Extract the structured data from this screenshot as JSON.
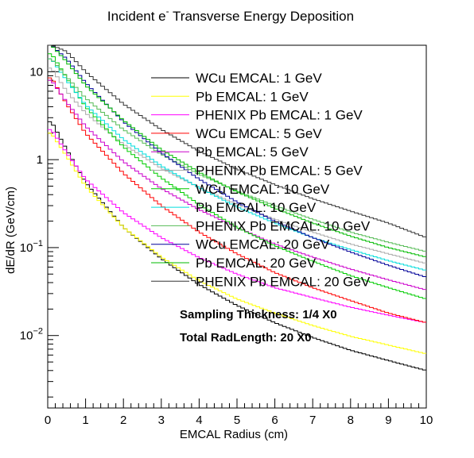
{
  "chart_data": {
    "type": "line",
    "title_main": "Incident e",
    "title_sup": "-",
    "title_rest": " Transverse Energy Deposition",
    "xlabel": "EMCAL Radius (cm)",
    "ylabel": "dE/dR (GeV/cm)",
    "xlim": [
      0,
      10
    ],
    "ylim": [
      0.0015,
      20
    ],
    "yscale": "log",
    "grid": false,
    "legend_position": "top-right",
    "x_ticks": [
      "0",
      "1",
      "2",
      "3",
      "4",
      "5",
      "6",
      "7",
      "8",
      "9",
      "10"
    ],
    "y_ticks": [
      {
        "value": 0.01,
        "base": "10",
        "exp": "−2"
      },
      {
        "value": 0.1,
        "base": "10",
        "exp": "−1"
      },
      {
        "value": 1,
        "base": "1",
        "exp": ""
      },
      {
        "value": 10,
        "base": "10",
        "exp": ""
      }
    ],
    "annotations": [
      "Sampling Thickness: 1/4 X0",
      "Total RadLength: 20 X0"
    ],
    "series": [
      {
        "name": "WCu EMCAL: 1 GeV",
        "color": "#000000",
        "x": [
          0.1,
          0.5,
          1,
          2,
          3,
          4,
          5,
          6,
          7,
          8,
          9,
          10
        ],
        "y": [
          2.7,
          1.3,
          0.55,
          0.17,
          0.075,
          0.038,
          0.022,
          0.014,
          0.0095,
          0.0068,
          0.0052,
          0.004
        ]
      },
      {
        "name": "Pb EMCAL: 1 GeV",
        "color": "#ffff00",
        "x": [
          0.1,
          0.5,
          1,
          2,
          3,
          4,
          5,
          6,
          7,
          8,
          9,
          10
        ],
        "y": [
          2.0,
          1.1,
          0.5,
          0.17,
          0.078,
          0.042,
          0.026,
          0.018,
          0.013,
          0.0098,
          0.0078,
          0.0062
        ]
      },
      {
        "name": "PHENIX Pb EMCAL: 1 GeV",
        "color": "#ff00ff",
        "x": [
          0.1,
          0.5,
          1,
          2,
          3,
          4,
          5,
          6,
          7,
          8,
          9,
          10
        ],
        "y": [
          2.2,
          1.2,
          0.6,
          0.25,
          0.13,
          0.077,
          0.05,
          0.035,
          0.027,
          0.021,
          0.017,
          0.014
        ]
      },
      {
        "name": "WCu EMCAL: 5 GeV",
        "color": "#ff0000",
        "x": [
          0.1,
          0.5,
          1,
          2,
          3,
          4,
          5,
          6,
          7,
          8,
          9,
          10
        ],
        "y": [
          8.5,
          4.3,
          2.0,
          0.7,
          0.3,
          0.15,
          0.085,
          0.052,
          0.035,
          0.025,
          0.018,
          0.014
        ]
      },
      {
        "name": "Pb EMCAL: 5 GeV",
        "color": "#cc00cc",
        "x": [
          0.1,
          0.5,
          1,
          2,
          3,
          4,
          5,
          6,
          7,
          8,
          9,
          10
        ],
        "y": [
          8.0,
          4.5,
          2.4,
          0.95,
          0.47,
          0.27,
          0.17,
          0.11,
          0.078,
          0.057,
          0.043,
          0.033
        ]
      },
      {
        "name": "PHENIX Pb EMCAL: 5 GeV",
        "color": "#aaaaaa",
        "x": [
          0.1,
          0.5,
          1,
          2,
          3,
          4,
          5,
          6,
          7,
          8,
          9,
          10
        ],
        "y": [
          11,
          6.0,
          3.4,
          1.5,
          0.8,
          0.48,
          0.31,
          0.21,
          0.15,
          0.11,
          0.085,
          0.066
        ]
      },
      {
        "name": "WCu EMCAL: 10 GeV",
        "color": "#00cc00",
        "x": [
          0.1,
          0.5,
          1,
          2,
          3,
          4,
          5,
          6,
          7,
          8,
          9,
          10
        ],
        "y": [
          16,
          8.5,
          4.0,
          1.4,
          0.62,
          0.31,
          0.17,
          0.105,
          0.07,
          0.048,
          0.035,
          0.026
        ]
      },
      {
        "name": "Pb EMCAL: 10 GeV",
        "color": "#00dddd",
        "x": [
          0.1,
          0.5,
          1,
          2,
          3,
          4,
          5,
          6,
          7,
          8,
          9,
          10
        ],
        "y": [
          14,
          8.0,
          4.2,
          1.7,
          0.85,
          0.48,
          0.29,
          0.19,
          0.13,
          0.095,
          0.071,
          0.055
        ]
      },
      {
        "name": "PHENIX Pb EMCAL: 10 GeV",
        "color": "#55bb55",
        "x": [
          0.1,
          0.5,
          1,
          2,
          3,
          4,
          5,
          6,
          7,
          8,
          9,
          10
        ],
        "y": [
          14,
          8.8,
          5.0,
          2.2,
          1.15,
          0.68,
          0.44,
          0.3,
          0.21,
          0.15,
          0.115,
          0.09
        ]
      },
      {
        "name": "WCu EMCAL: 20 GeV",
        "color": "#000099",
        "x": [
          0.1,
          0.5,
          1,
          2,
          3,
          4,
          5,
          6,
          7,
          8,
          9,
          10
        ],
        "y": [
          20,
          14,
          7.5,
          2.7,
          1.2,
          0.6,
          0.33,
          0.2,
          0.13,
          0.089,
          0.063,
          0.046
        ]
      },
      {
        "name": "Pb EMCAL: 20 GeV",
        "color": "#00bb00",
        "x": [
          0.1,
          0.5,
          1,
          2,
          3,
          4,
          5,
          6,
          7,
          8,
          9,
          10
        ],
        "y": [
          20,
          13,
          7.0,
          2.8,
          1.3,
          0.72,
          0.43,
          0.28,
          0.19,
          0.135,
          0.1,
          0.078
        ]
      },
      {
        "name": "PHENIX Pb EMCAL: 20 GeV",
        "color": "#333333",
        "x": [
          0.1,
          0.5,
          1,
          2,
          3,
          4,
          5,
          6,
          7,
          8,
          9,
          10
        ],
        "y": [
          20,
          17,
          10,
          4.3,
          2.2,
          1.25,
          0.78,
          0.52,
          0.36,
          0.26,
          0.19,
          0.13
        ]
      }
    ]
  }
}
